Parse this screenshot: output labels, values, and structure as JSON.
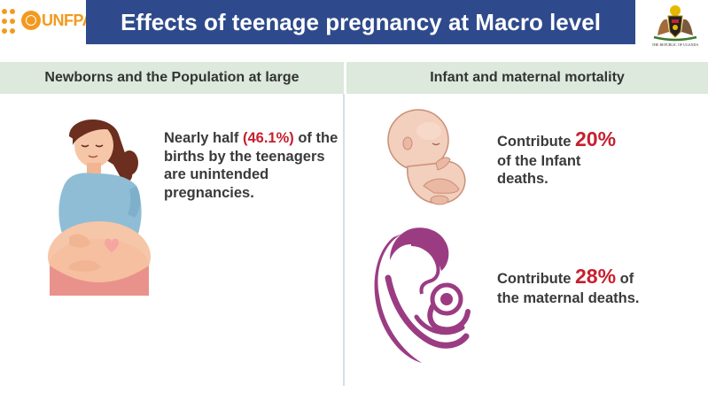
{
  "header": {
    "logo_text": "UNFPA",
    "title": "Effects of teenage pregnancy at Macro level",
    "coat_of_arms_caption": "THE REPUBLIC OF UGANDA",
    "colors": {
      "title_bg": "#2e4a8c",
      "logo": "#f39a1e",
      "section_bg": "#dce9dc",
      "highlight": "#c6202f"
    }
  },
  "sections": {
    "left_header": "Newborns and the Population at large",
    "right_header": "Infant and maternal mortality"
  },
  "left": {
    "illustration": "pregnant-woman-icon",
    "text_pre": "Nearly half ",
    "highlight": "(46.1%)",
    "text_post": "of the births by the teenagers are unintended pregnancies."
  },
  "right": {
    "infant": {
      "illustration": "fetus-icon",
      "prefix": "Contribute ",
      "value": "20%",
      "suffix": "of the Infant deaths."
    },
    "maternal": {
      "illustration": "mother-and-child-icon",
      "prefix": "Contribute ",
      "value": "28%",
      "suffix_inline": " of",
      "suffix": "the maternal deaths."
    }
  }
}
